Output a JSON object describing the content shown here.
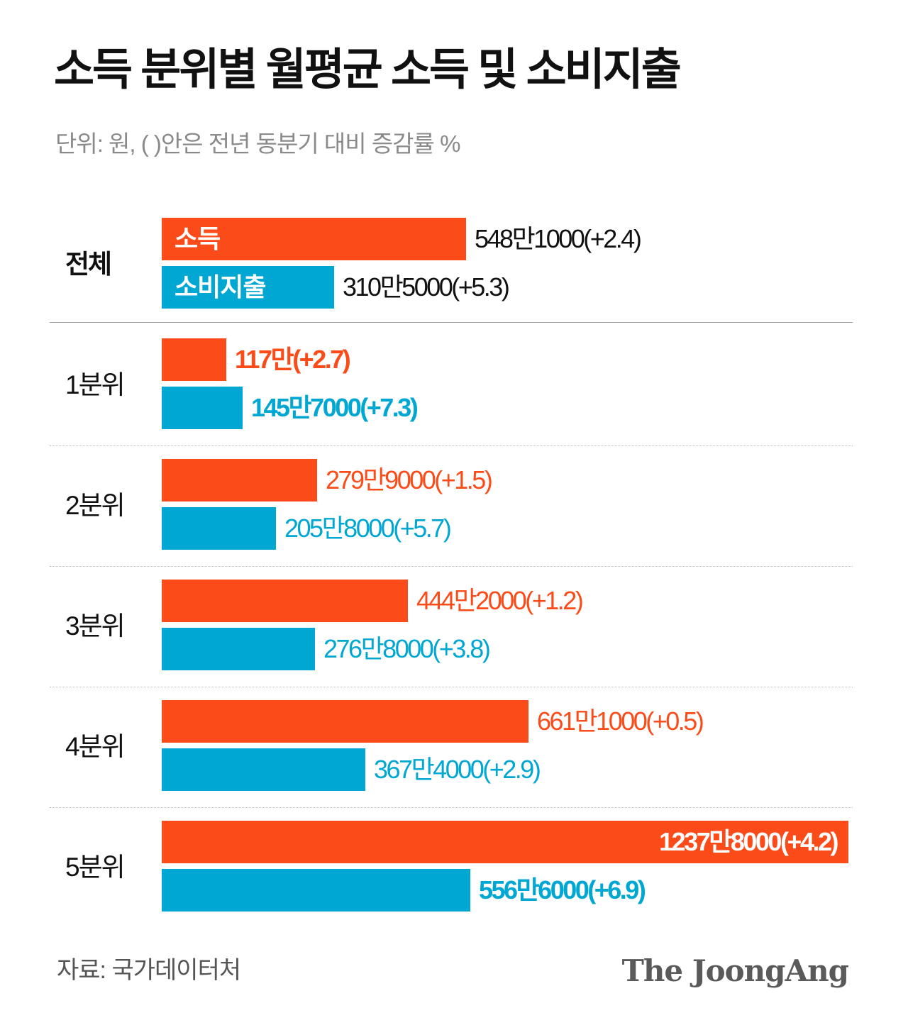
{
  "title": "소득 분위별 월평균 소득 및 소비지출",
  "subtitle": "단위: 원, ( )안은 전년 동분기 대비 증감률 %",
  "source": "자료: 국가데이터처",
  "logo": "The JoongAng",
  "colors": {
    "income": "#fb4b19",
    "spending": "#00a7d3",
    "text": "#111111"
  },
  "chart_data": {
    "type": "bar",
    "orientation": "horizontal",
    "unit": "원",
    "categories": [
      "전체",
      "1분위",
      "2분위",
      "3분위",
      "4분위",
      "5분위"
    ],
    "series": [
      {
        "name": "소득",
        "values": [
          5481000,
          1170000,
          2799000,
          4442000,
          6611000,
          12378000
        ],
        "labels": [
          "548만1000(+2.4)",
          "117만(+2.7)",
          "279만9000(+1.5)",
          "444만2000(+1.2)",
          "661만1000(+0.5)",
          "1237만8000(+4.2)"
        ],
        "change_pct": [
          2.4,
          2.7,
          1.5,
          1.2,
          0.5,
          4.2
        ]
      },
      {
        "name": "소비지출",
        "values": [
          3105000,
          1457000,
          2058000,
          2768000,
          3674000,
          5566000
        ],
        "labels": [
          "310만5000(+5.3)",
          "145만7000(+7.3)",
          "205만8000(+5.7)",
          "276만8000(+3.8)",
          "367만4000(+2.9)",
          "556만6000(+6.9)"
        ],
        "change_pct": [
          5.3,
          7.3,
          5.7,
          3.8,
          2.9,
          6.9
        ]
      }
    ],
    "legend": "inside-first-group"
  }
}
